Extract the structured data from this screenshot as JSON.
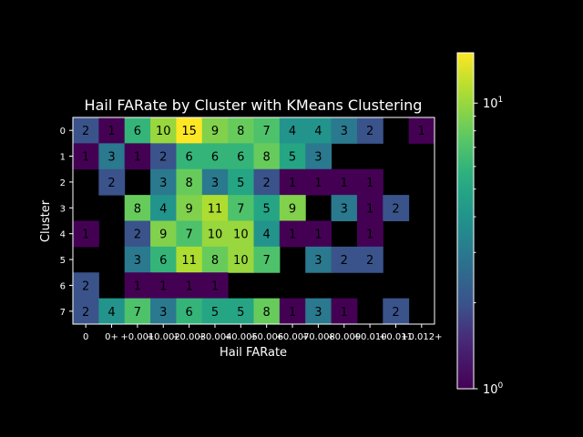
{
  "chart_data": {
    "type": "heatmap",
    "title": "Hail FARate by Cluster with KMeans Clustering",
    "xlabel": "Hail FARate",
    "ylabel": "Cluster",
    "x_tick_labels": [
      "0",
      "0+",
      "+0.001",
      "+0.002",
      "+0.003",
      "+0.004",
      "+0.005",
      "+0.006",
      "+0.007",
      "+0.008",
      "+0.009",
      "+0.010",
      "+0.011",
      "+0.012+"
    ],
    "y_tick_labels": [
      "0",
      "1",
      "2",
      "3",
      "4",
      "5",
      "6",
      "7"
    ],
    "values": [
      [
        2,
        1,
        6,
        10,
        15,
        9,
        8,
        7,
        4,
        4,
        3,
        2,
        null,
        1
      ],
      [
        1,
        3,
        1,
        2,
        6,
        6,
        6,
        8,
        5,
        3,
        null,
        null,
        null,
        null
      ],
      [
        null,
        2,
        null,
        3,
        8,
        3,
        5,
        2,
        1,
        1,
        1,
        1,
        null,
        null
      ],
      [
        null,
        null,
        8,
        4,
        9,
        11,
        7,
        5,
        9,
        null,
        3,
        1,
        2,
        null
      ],
      [
        1,
        null,
        2,
        9,
        7,
        10,
        10,
        4,
        1,
        1,
        null,
        1,
        null,
        null
      ],
      [
        null,
        null,
        3,
        6,
        11,
        8,
        10,
        7,
        null,
        3,
        2,
        2,
        null,
        null
      ],
      [
        2,
        null,
        1,
        1,
        1,
        1,
        null,
        null,
        null,
        null,
        null,
        null,
        null,
        null
      ],
      [
        2,
        4,
        7,
        3,
        6,
        5,
        5,
        8,
        1,
        3,
        1,
        null,
        2,
        null
      ]
    ],
    "colorbar": {
      "scale": "log",
      "range": [
        1,
        15
      ],
      "colormap": "viridis",
      "tick_labels": [
        "10^0",
        "10^1"
      ],
      "tick_values": [
        1,
        10
      ]
    },
    "colors": {
      "background": "#000000",
      "foreground": "#ffffff",
      "missing": "#000000"
    }
  }
}
